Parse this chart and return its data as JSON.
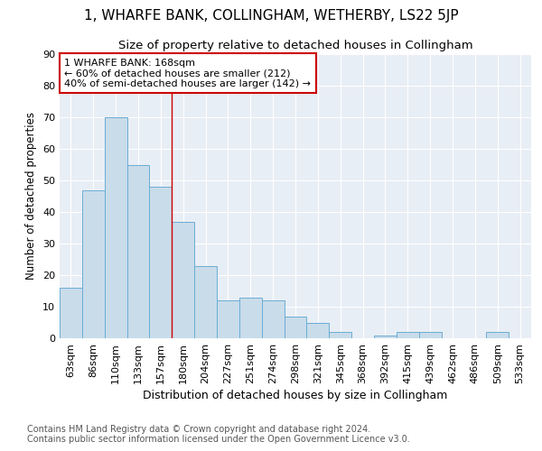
{
  "title": "1, WHARFE BANK, COLLINGHAM, WETHERBY, LS22 5JP",
  "subtitle": "Size of property relative to detached houses in Collingham",
  "xlabel": "Distribution of detached houses by size in Collingham",
  "ylabel": "Number of detached properties",
  "categories": [
    "63sqm",
    "86sqm",
    "110sqm",
    "133sqm",
    "157sqm",
    "180sqm",
    "204sqm",
    "227sqm",
    "251sqm",
    "274sqm",
    "298sqm",
    "321sqm",
    "345sqm",
    "368sqm",
    "392sqm",
    "415sqm",
    "439sqm",
    "462sqm",
    "486sqm",
    "509sqm",
    "533sqm"
  ],
  "values": [
    16,
    47,
    70,
    55,
    48,
    37,
    23,
    12,
    13,
    12,
    7,
    5,
    2,
    0,
    1,
    2,
    2,
    0,
    0,
    2,
    0
  ],
  "bar_color": "#c9dcea",
  "bar_edge_color": "#6aadd5",
  "highlight_index": 5,
  "vline_color": "#cc0000",
  "annotation_text": "1 WHARFE BANK: 168sqm\n← 60% of detached houses are smaller (212)\n40% of semi-detached houses are larger (142) →",
  "annotation_box_color": "#ffffff",
  "annotation_box_edge_color": "#cc0000",
  "footer_line1": "Contains HM Land Registry data © Crown copyright and database right 2024.",
  "footer_line2": "Contains public sector information licensed under the Open Government Licence v3.0.",
  "ylim": [
    0,
    90
  ],
  "yticks": [
    0,
    10,
    20,
    30,
    40,
    50,
    60,
    70,
    80,
    90
  ],
  "plot_bg_color": "#e8eef5",
  "title_fontsize": 11,
  "subtitle_fontsize": 9.5,
  "xlabel_fontsize": 9,
  "ylabel_fontsize": 8.5,
  "tick_fontsize": 8,
  "footer_fontsize": 7
}
